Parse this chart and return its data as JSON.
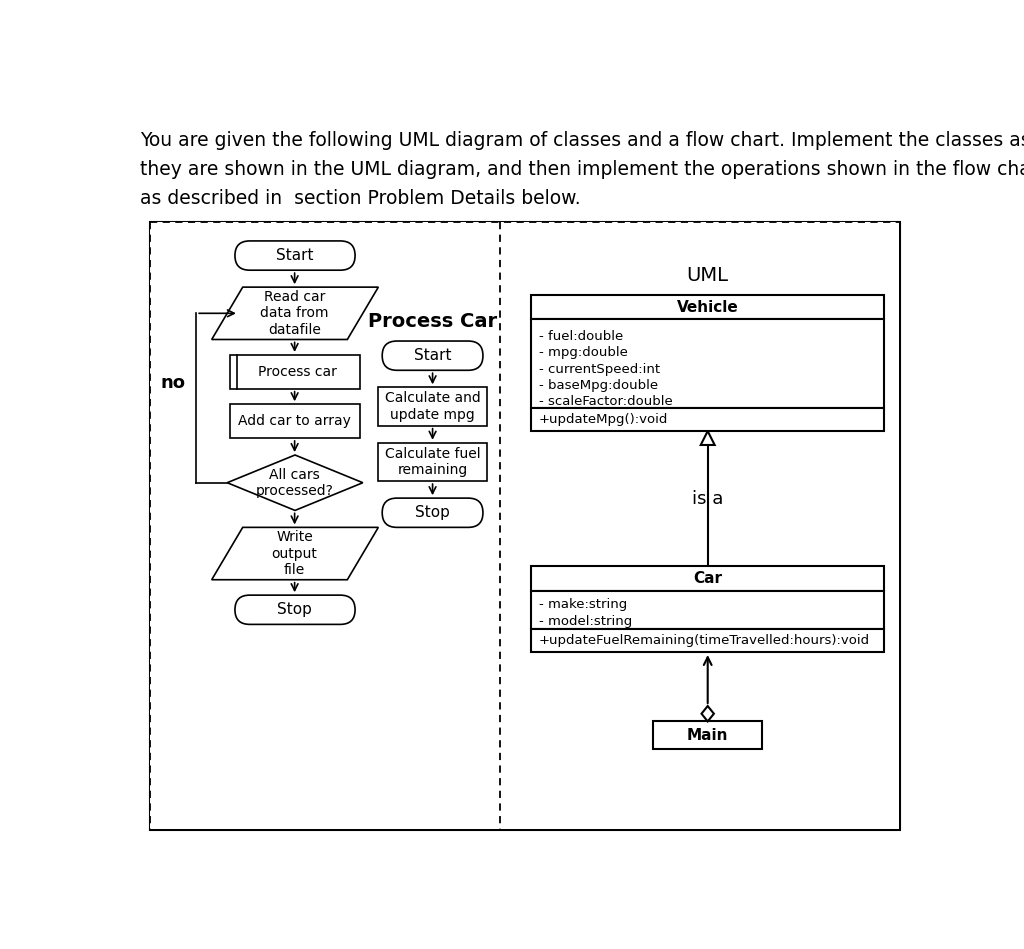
{
  "title_line1": "You are given the following UML diagram of classes and a flow chart. Implement the classes as",
  "title_line2": "they are shown in the UML diagram, and then implement the operations shown in the flow chart",
  "title_line3": "as described in  section Problem Details below.",
  "background_color": "#ffffff",
  "process_car_title": "Process Car",
  "uml_title": "UML",
  "vehicle_name": "Vehicle",
  "vehicle_attrs": [
    "- fuel:double",
    "- mpg:double",
    "- currentSpeed:int",
    "- baseMpg:double",
    "- scaleFactor:double"
  ],
  "vehicle_method": "+updateMpg():void",
  "car_name": "Car",
  "car_attrs": [
    "- make:string",
    "- model:string"
  ],
  "car_method": "+updateFuelRemaining(timeTravelled:hours):void",
  "main_name": "Main",
  "is_a_text": "is a",
  "no_text": "no",
  "fig_width": 10.24,
  "fig_height": 9.49,
  "dpi": 100
}
